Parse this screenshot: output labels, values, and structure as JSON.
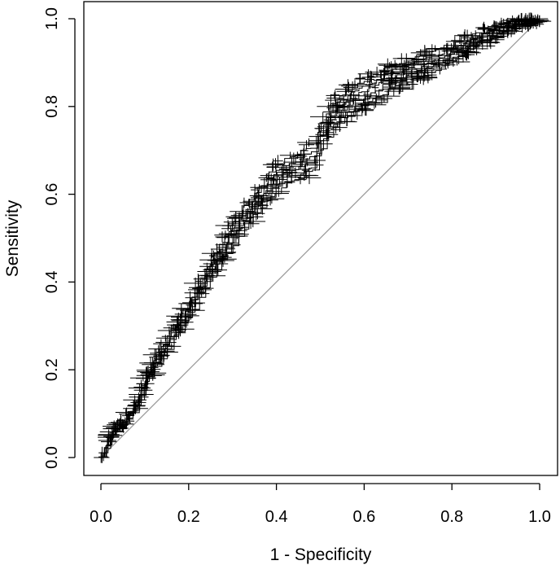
{
  "chart_data": {
    "type": "line",
    "xlabel": "1 - Specificity",
    "ylabel": "Sensitivity",
    "xlim": [
      0,
      1
    ],
    "ylim": [
      0,
      1
    ],
    "x_ticks": [
      0.0,
      0.2,
      0.4,
      0.6,
      0.8,
      1.0
    ],
    "y_ticks": [
      0.0,
      0.2,
      0.4,
      0.6,
      0.8,
      1.0
    ],
    "x_tick_labels": [
      "0.0",
      "0.2",
      "0.4",
      "0.6",
      "0.8",
      "1.0"
    ],
    "y_tick_labels": [
      "0.0",
      "0.2",
      "0.4",
      "0.6",
      "0.8",
      "1.0"
    ],
    "grid": false,
    "reference_line": {
      "x": [
        0,
        1
      ],
      "y": [
        0,
        1
      ],
      "color": "#999999"
    },
    "series": [
      {
        "style": "step-curves-with-error-crosses",
        "color": "#000000",
        "x": [
          0.0,
          0.02,
          0.05,
          0.08,
          0.1,
          0.15,
          0.2,
          0.25,
          0.3,
          0.35,
          0.38,
          0.42,
          0.48,
          0.52,
          0.55,
          0.6,
          0.65,
          0.7,
          0.75,
          0.8,
          0.85,
          0.9,
          0.95,
          1.0
        ],
        "y": [
          0.0,
          0.05,
          0.08,
          0.12,
          0.18,
          0.26,
          0.34,
          0.43,
          0.51,
          0.58,
          0.62,
          0.65,
          0.68,
          0.77,
          0.8,
          0.83,
          0.86,
          0.88,
          0.9,
          0.92,
          0.95,
          0.97,
          0.99,
          1.0
        ]
      }
    ]
  }
}
